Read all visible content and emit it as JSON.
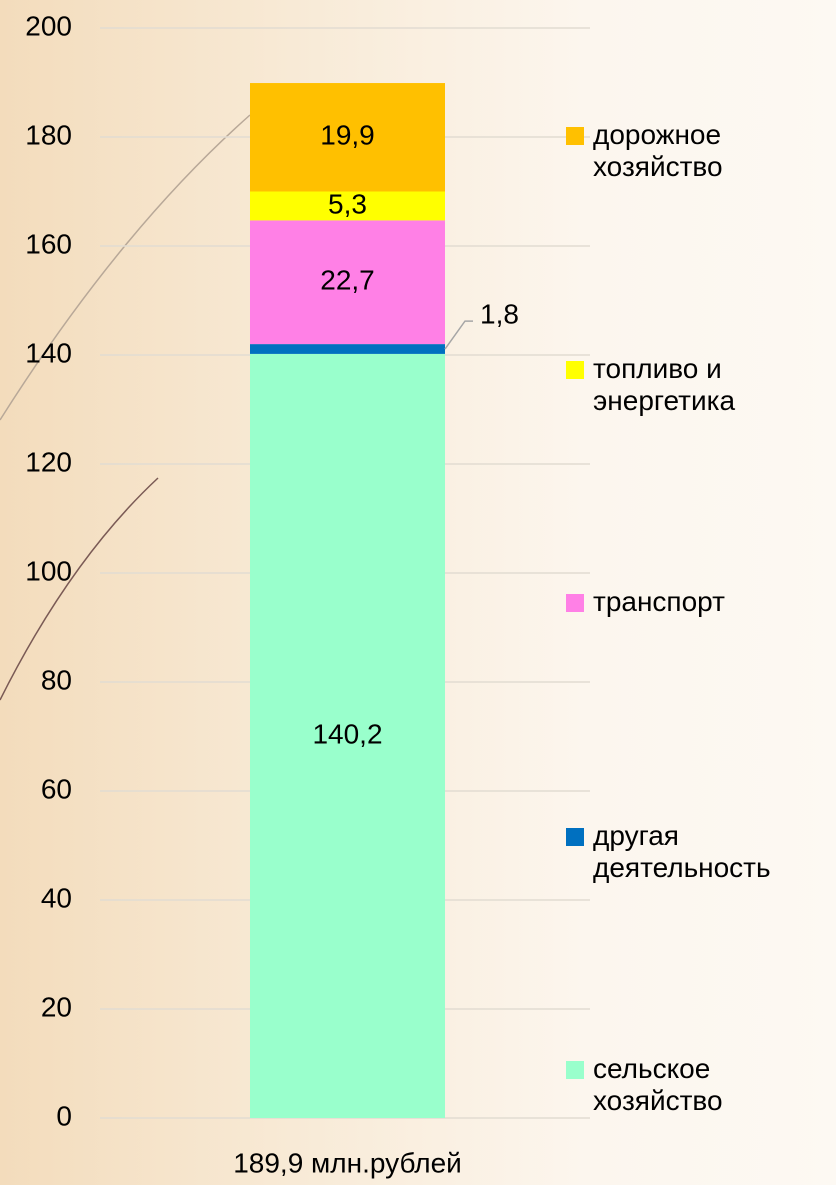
{
  "chart_data": {
    "type": "stacked_bar",
    "categories": [
      "189,9 млн.рублей"
    ],
    "series": [
      {
        "name": "сельское хозяйство",
        "color": "#99ffcc",
        "values": [
          140.2
        ],
        "value_labels": [
          "140,2"
        ]
      },
      {
        "name": "другая деятельность",
        "color": "#0070c0",
        "values": [
          1.8
        ],
        "value_labels": [
          "1,8"
        ]
      },
      {
        "name": "транспорт",
        "color": "#ff80e6",
        "values": [
          22.7
        ],
        "value_labels": [
          "22,7"
        ]
      },
      {
        "name": "топливо и энергетика",
        "color": "#ffff00",
        "values": [
          5.3
        ],
        "value_labels": [
          "5,3"
        ]
      },
      {
        "name": "дорожное хозяйство",
        "color": "#ffc000",
        "values": [
          19.9
        ],
        "value_labels": [
          "19,9"
        ]
      }
    ],
    "ylim": [
      0,
      200
    ],
    "yticks": [
      0,
      20,
      40,
      60,
      80,
      100,
      120,
      140,
      160,
      180,
      200
    ],
    "grid": true,
    "legend": "right"
  }
}
